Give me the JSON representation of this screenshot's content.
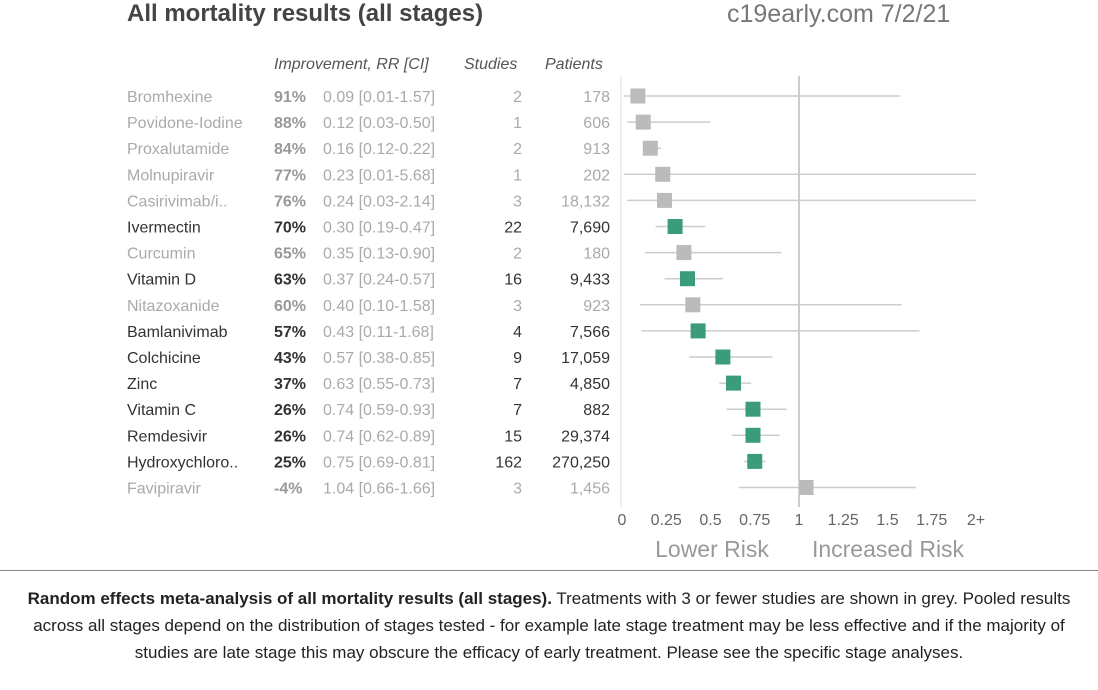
{
  "title": "All mortality results (all stages)",
  "source": "c19early.com 7/2/21",
  "headers": {
    "improvement": "Improvement, RR [CI]",
    "studies": "Studies",
    "patients": "Patients"
  },
  "chart_data": {
    "type": "forest",
    "axis": {
      "range": [
        0,
        2
      ],
      "ticks": [
        0,
        0.25,
        0.5,
        0.75,
        1,
        1.25,
        1.5,
        1.75,
        2
      ],
      "tick_labels": [
        "0",
        "0.25",
        "0.5",
        "0.75",
        "1",
        "1.25",
        "1.5",
        "1.75",
        "2+"
      ],
      "reference": 1,
      "left_label": "Lower Risk",
      "right_label": "Increased Risk"
    },
    "colors": {
      "significant": "#3a9c7a",
      "grey": "#bbbbbb"
    },
    "rows": [
      {
        "name": "Bromhexine",
        "improvement": "91%",
        "rr_text": "0.09 [0.01-1.57]",
        "rr": 0.09,
        "lo": 0.01,
        "hi": 1.57,
        "studies": "2",
        "patients": "178",
        "grey": true
      },
      {
        "name": "Povidone-Iodine",
        "improvement": "88%",
        "rr_text": "0.12 [0.03-0.50]",
        "rr": 0.12,
        "lo": 0.03,
        "hi": 0.5,
        "studies": "1",
        "patients": "606",
        "grey": true
      },
      {
        "name": "Proxalutamide",
        "improvement": "84%",
        "rr_text": "0.16 [0.12-0.22]",
        "rr": 0.16,
        "lo": 0.12,
        "hi": 0.22,
        "studies": "2",
        "patients": "913",
        "grey": true
      },
      {
        "name": "Molnupiravir",
        "improvement": "77%",
        "rr_text": "0.23 [0.01-5.68]",
        "rr": 0.23,
        "lo": 0.01,
        "hi": 5.68,
        "studies": "1",
        "patients": "202",
        "grey": true
      },
      {
        "name": "Casirivimab/i..",
        "improvement": "76%",
        "rr_text": "0.24 [0.03-2.14]",
        "rr": 0.24,
        "lo": 0.03,
        "hi": 2.14,
        "studies": "3",
        "patients": "18,132",
        "grey": true
      },
      {
        "name": "Ivermectin",
        "improvement": "70%",
        "rr_text": "0.30 [0.19-0.47]",
        "rr": 0.3,
        "lo": 0.19,
        "hi": 0.47,
        "studies": "22",
        "patients": "7,690",
        "grey": false
      },
      {
        "name": "Curcumin",
        "improvement": "65%",
        "rr_text": "0.35 [0.13-0.90]",
        "rr": 0.35,
        "lo": 0.13,
        "hi": 0.9,
        "studies": "2",
        "patients": "180",
        "grey": true
      },
      {
        "name": "Vitamin D",
        "improvement": "63%",
        "rr_text": "0.37 [0.24-0.57]",
        "rr": 0.37,
        "lo": 0.24,
        "hi": 0.57,
        "studies": "16",
        "patients": "9,433",
        "grey": false
      },
      {
        "name": "Nitazoxanide",
        "improvement": "60%",
        "rr_text": "0.40 [0.10-1.58]",
        "rr": 0.4,
        "lo": 0.1,
        "hi": 1.58,
        "studies": "3",
        "patients": "923",
        "grey": true
      },
      {
        "name": "Bamlanivimab",
        "improvement": "57%",
        "rr_text": "0.43 [0.11-1.68]",
        "rr": 0.43,
        "lo": 0.11,
        "hi": 1.68,
        "studies": "4",
        "patients": "7,566",
        "grey": false
      },
      {
        "name": "Colchicine",
        "improvement": "43%",
        "rr_text": "0.57 [0.38-0.85]",
        "rr": 0.57,
        "lo": 0.38,
        "hi": 0.85,
        "studies": "9",
        "patients": "17,059",
        "grey": false
      },
      {
        "name": "Zinc",
        "improvement": "37%",
        "rr_text": "0.63 [0.55-0.73]",
        "rr": 0.63,
        "lo": 0.55,
        "hi": 0.73,
        "studies": "7",
        "patients": "4,850",
        "grey": false
      },
      {
        "name": "Vitamin C",
        "improvement": "26%",
        "rr_text": "0.74 [0.59-0.93]",
        "rr": 0.74,
        "lo": 0.59,
        "hi": 0.93,
        "studies": "7",
        "patients": "882",
        "grey": false
      },
      {
        "name": "Remdesivir",
        "improvement": "26%",
        "rr_text": "0.74 [0.62-0.89]",
        "rr": 0.74,
        "lo": 0.62,
        "hi": 0.89,
        "studies": "15",
        "patients": "29,374",
        "grey": false
      },
      {
        "name": "Hydroxychloro..",
        "improvement": "25%",
        "rr_text": "0.75 [0.69-0.81]",
        "rr": 0.75,
        "lo": 0.69,
        "hi": 0.81,
        "studies": "162",
        "patients": "270,250",
        "grey": false
      },
      {
        "name": "Favipiravir",
        "improvement": "-4%",
        "rr_text": "1.04 [0.66-1.66]",
        "rr": 1.04,
        "lo": 0.66,
        "hi": 1.66,
        "studies": "3",
        "patients": "1,456",
        "grey": true
      }
    ]
  },
  "caption": {
    "bold": "Random effects meta-analysis of all mortality results (all stages).",
    "text": " Treatments with 3 or fewer studies are shown in grey. Pooled results across all stages depend on the distribution of stages tested - for example late stage treatment may be less effective and if the majority of studies are late stage this may obscure the efficacy of early treatment. Please see the specific stage analyses."
  }
}
